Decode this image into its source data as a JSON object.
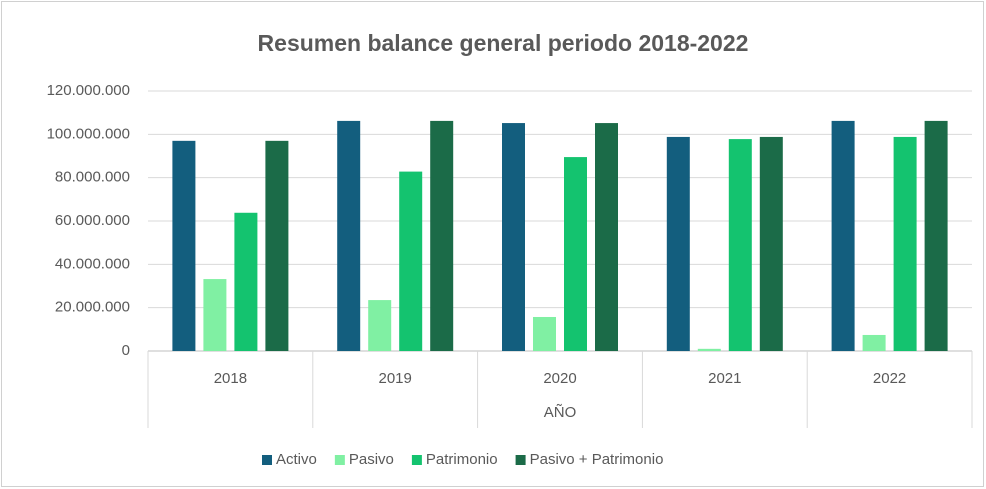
{
  "chart_data": {
    "type": "bar",
    "title": "Resumen balance general periodo 2018-2022",
    "x_label": "AÑO",
    "categories": [
      "2018",
      "2019",
      "2020",
      "2021",
      "2022"
    ],
    "series": [
      {
        "name": "Activo",
        "color": "#135e7e",
        "values": [
          97000000,
          106200000,
          105200000,
          98800000,
          106200000
        ]
      },
      {
        "name": "Pasivo",
        "color": "#80f0a3",
        "values": [
          33200000,
          23500000,
          15700000,
          1000000,
          7400000
        ]
      },
      {
        "name": "Patrimonio",
        "color": "#14c36f",
        "values": [
          63800000,
          82800000,
          89500000,
          97800000,
          98800000
        ]
      },
      {
        "name": "Pasivo + Patrimonio",
        "color": "#1b6b48",
        "values": [
          97000000,
          106200000,
          105200000,
          98800000,
          106200000
        ]
      }
    ],
    "ylim": [
      0,
      120000000
    ],
    "yticks": [
      0,
      {
        "value": 20000000,
        "label": "20.000.000"
      },
      {
        "value": 40000000,
        "label": "40.000.000"
      },
      {
        "value": 60000000,
        "label": "60.000.000"
      },
      {
        "value": 80000000,
        "label": "80.000.000"
      },
      {
        "value": 100000000,
        "label": "100.000.000"
      },
      {
        "value": 120000000,
        "label": "120.000.000"
      }
    ],
    "grid": true,
    "legend": "bottom"
  }
}
